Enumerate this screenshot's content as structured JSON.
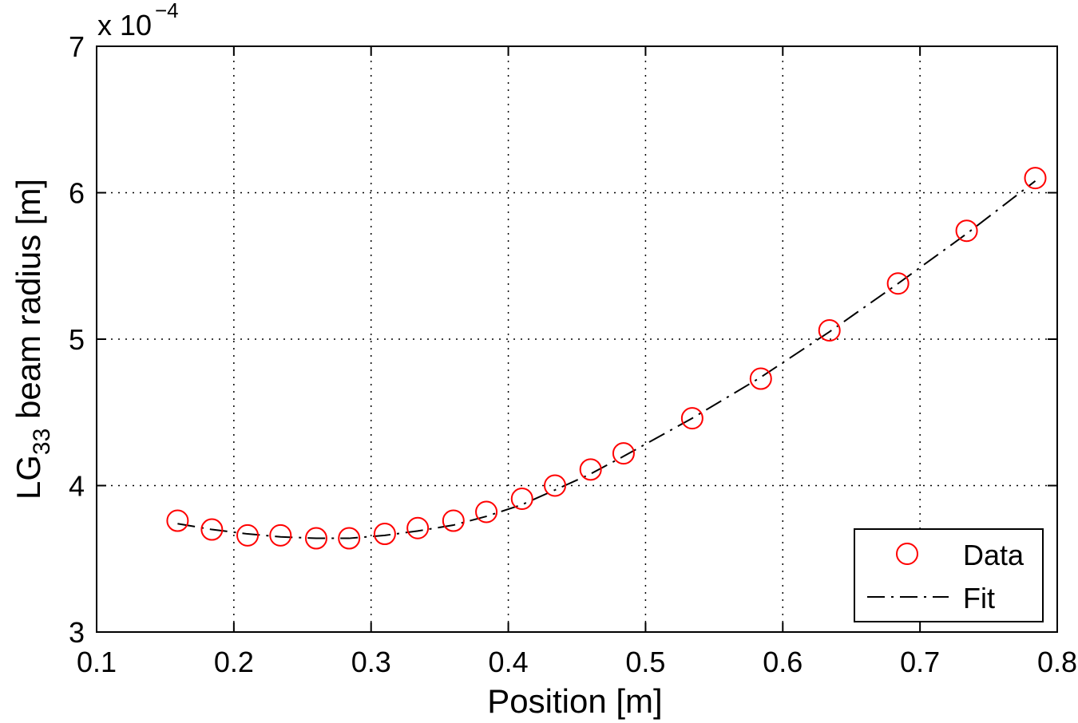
{
  "chart_data": {
    "type": "scatter",
    "xlabel": "Position [m]",
    "ylabel_main": "LG",
    "ylabel_sub": "33",
    "ylabel_rest": " beam radius [m]",
    "y_exponent_prefix": "x 10",
    "y_exponent_power": "−4",
    "xlim": [
      0.1,
      0.8
    ],
    "ylim": [
      3,
      7
    ],
    "x_ticks": [
      0.1,
      0.2,
      0.3,
      0.4,
      0.5,
      0.6,
      0.7,
      0.8
    ],
    "x_tick_labels": [
      "0.1",
      "0.2",
      "0.3",
      "0.4",
      "0.5",
      "0.6",
      "0.7",
      "0.8"
    ],
    "y_ticks": [
      3,
      4,
      5,
      6,
      7
    ],
    "y_tick_labels": [
      "3",
      "4",
      "5",
      "6",
      "7"
    ],
    "grid": true,
    "legend_position": "bottom-right",
    "series": [
      {
        "name": "Data",
        "style": "markers",
        "marker": "circle",
        "color": "#ff0000",
        "x": [
          0.159,
          0.184,
          0.21,
          0.234,
          0.26,
          0.284,
          0.31,
          0.334,
          0.36,
          0.384,
          0.41,
          0.434,
          0.46,
          0.484,
          0.534,
          0.584,
          0.634,
          0.684,
          0.734,
          0.784
        ],
        "y": [
          3.76,
          3.7,
          3.66,
          3.66,
          3.64,
          3.64,
          3.67,
          3.71,
          3.76,
          3.82,
          3.91,
          4.0,
          4.11,
          4.22,
          4.46,
          4.73,
          5.06,
          5.38,
          5.74,
          6.1
        ]
      },
      {
        "name": "Fit",
        "style": "dash-dot line",
        "color": "#000000",
        "x": [
          0.159,
          0.184,
          0.21,
          0.234,
          0.26,
          0.284,
          0.31,
          0.334,
          0.36,
          0.384,
          0.41,
          0.434,
          0.46,
          0.484,
          0.534,
          0.584,
          0.634,
          0.684,
          0.734,
          0.784
        ],
        "y": [
          3.74,
          3.7,
          3.67,
          3.65,
          3.64,
          3.64,
          3.66,
          3.69,
          3.73,
          3.79,
          3.87,
          3.97,
          4.08,
          4.2,
          4.46,
          4.74,
          5.05,
          5.38,
          5.72,
          6.08
        ]
      }
    ]
  }
}
